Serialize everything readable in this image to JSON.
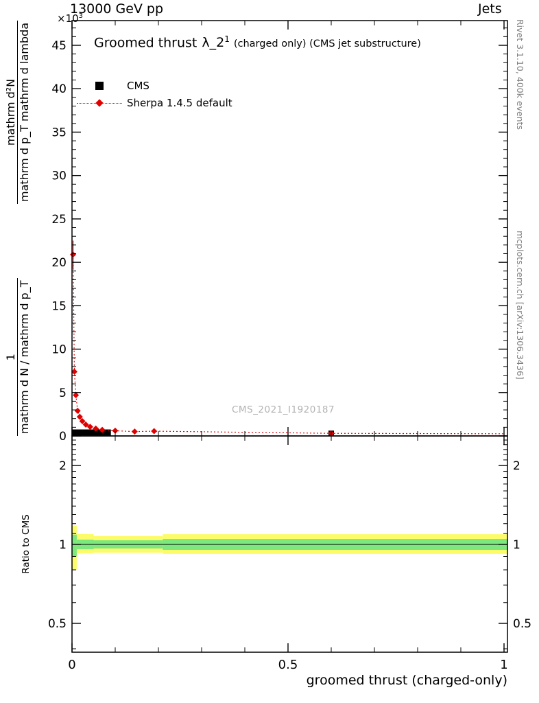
{
  "header": {
    "beam": "13000 GeV pp",
    "right": "Jets"
  },
  "scale": {
    "base": "×10",
    "exp": "3"
  },
  "title": {
    "main": "Groomed thrust",
    "lambda": "λ_2",
    "sup": "1",
    "suffix": "(charged only) (CMS jet substructure)"
  },
  "legend": [
    {
      "label": "CMS",
      "marker": "black-square",
      "color": "#000000"
    },
    {
      "label": "Sherpa 1.4.5 default",
      "marker": "red-diamond-dotted-line",
      "color": "#e00000"
    }
  ],
  "watermark": "CMS_2021_I1920187",
  "side_labels": {
    "rivet": "Rivet 3.1.10,  400k events",
    "mcplots": "mcplots.cern.ch [arXiv:1306.3436]"
  },
  "ylabel": {
    "frac1_num": "1",
    "frac1_den": "mathrm d N / mathrm d p_T",
    "frac2_num": "mathrm d²N",
    "frac2_den": "mathrm d p_T mathrm d lambda"
  },
  "ratio_label": "Ratio to CMS",
  "xlabel": "groomed thrust (charged-only)",
  "chart_data": {
    "type": "line",
    "title": "Groomed thrust λ_2^1 (charged only) (CMS jet substructure)",
    "xlabel": "groomed thrust (charged-only)",
    "ylabel": "1/(dN/dp_T) d²N/(dp_T dλ) [×10^3]",
    "legend_position": "top-left-inside",
    "main_panel": {
      "xlim": [
        0,
        1.008
      ],
      "ylim": [
        0,
        48
      ],
      "xticks": [
        0,
        0.5,
        1
      ],
      "xtick_labels": [
        "0",
        "0.5",
        "1"
      ],
      "yticks": [
        0,
        5,
        10,
        15,
        20,
        25,
        30,
        35,
        40,
        45
      ],
      "x_minor_step": 0.1,
      "y_minor_step": 1,
      "grid": false,
      "series": [
        {
          "name": "CMS",
          "type": "band-points",
          "color": "#000000",
          "segments": [
            [
              0.0,
              0.09,
              0.05,
              0.75
            ]
          ],
          "points": [
            [
              0.6,
              0.3
            ]
          ]
        },
        {
          "name": "Sherpa 1.4.5 default",
          "type": "dotted-line-diamonds",
          "color": "#e00000",
          "points": [
            [
              0.0025,
              20.9
            ],
            [
              0.0055,
              7.4
            ],
            [
              0.009,
              4.7
            ],
            [
              0.013,
              2.9
            ],
            [
              0.018,
              2.2
            ],
            [
              0.024,
              1.7
            ],
            [
              0.032,
              1.3
            ],
            [
              0.042,
              1.05
            ],
            [
              0.055,
              0.85
            ],
            [
              0.07,
              0.7
            ],
            [
              0.1,
              0.6
            ],
            [
              0.145,
              0.5
            ],
            [
              0.19,
              0.55
            ],
            [
              0.6,
              0.3
            ]
          ],
          "line_end": [
            1.0,
            0.25
          ],
          "error_bars": [
            [
              0.0025,
              19.3,
              22.5
            ]
          ]
        }
      ]
    },
    "ratio_panel": {
      "ylabel": "Ratio to CMS",
      "yscale": "log",
      "ylim": [
        0.39,
        2.59
      ],
      "yticks": [
        0.5,
        1,
        2
      ],
      "ytick_labels": [
        "0.5",
        "1",
        "2"
      ],
      "y_minor": [
        0.4,
        0.6,
        0.7,
        0.8,
        0.9,
        1.1,
        1.2,
        1.3,
        1.4,
        1.5,
        1.6,
        1.7,
        1.8,
        1.9,
        2.1,
        2.2,
        2.3,
        2.4,
        2.5
      ],
      "reference_line": 1,
      "bands": {
        "yellow": {
          "color": "#fcfc6a",
          "segments": [
            [
              0,
              0.011,
              0.8,
              1.18
            ],
            [
              0.011,
              0.05,
              0.925,
              1.095
            ],
            [
              0.05,
              0.21,
              0.93,
              1.075
            ],
            [
              0.21,
              1.008,
              0.92,
              1.094
            ]
          ]
        },
        "green": {
          "color": "#7de87d",
          "segments": [
            [
              0,
              0.011,
              0.9,
              1.09
            ],
            [
              0.011,
              0.05,
              0.959,
              1.043
            ],
            [
              0.05,
              0.21,
              0.965,
              1.037
            ],
            [
              0.21,
              1.008,
              0.953,
              1.049
            ]
          ]
        }
      }
    }
  }
}
